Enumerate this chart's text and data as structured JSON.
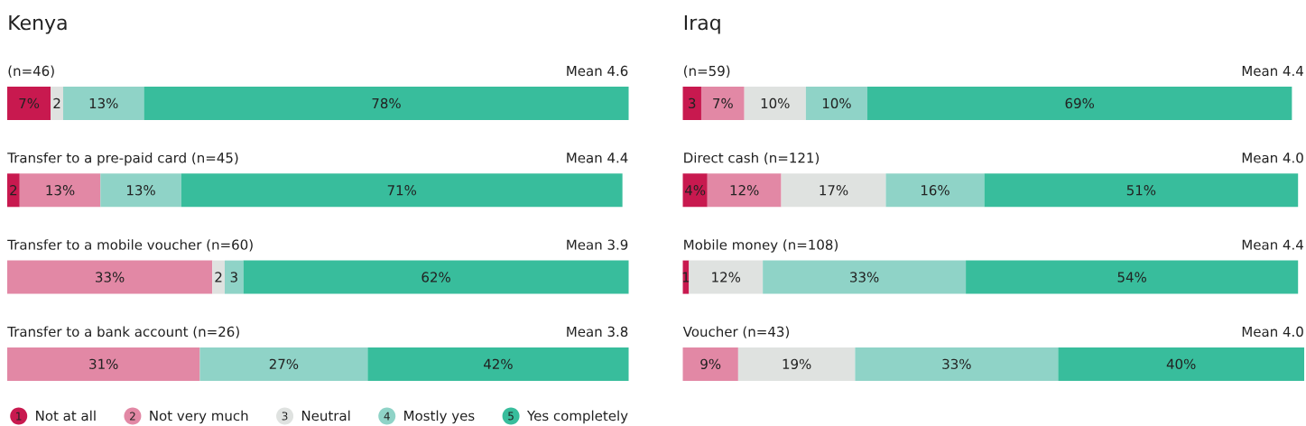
{
  "chart_data": [
    {
      "type": "bar",
      "orientation": "horizontal",
      "stacked": true,
      "title": "Kenya",
      "tick_labels": "y",
      "legend": "bottom",
      "categories": [
        "(n=46)",
        "Transfer to a pre-paid card (n=45)",
        "Transfer to a mobile voucher (n=60)",
        "Transfer to a bank account (n=26)"
      ],
      "y2_categories": [
        "Mean 4.6",
        "Mean 4.4",
        "Mean 3.9",
        "Mean 3.8"
      ],
      "series": [
        {
          "name": "Not at all",
          "color": "#c8194f",
          "values": [
            7,
            2,
            null,
            null
          ],
          "value_labels": [
            "7%",
            "2",
            null,
            null
          ]
        },
        {
          "name": "Not very much",
          "color": "#e288a5",
          "values": [
            null,
            13,
            33,
            31
          ],
          "value_labels": [
            null,
            "13%",
            "33%",
            "31%"
          ]
        },
        {
          "name": "Neutral",
          "color": "#dfe2e0",
          "values": [
            2,
            null,
            2,
            null
          ],
          "value_labels": [
            "2",
            null,
            "2",
            null
          ]
        },
        {
          "name": "Mostly yes",
          "color": "#8fd3c7",
          "values": [
            13,
            13,
            3,
            27
          ],
          "value_labels": [
            "13%",
            "13%",
            "3",
            "27%"
          ]
        },
        {
          "name": "Yes completely",
          "color": "#38bd9c",
          "values": [
            78,
            71,
            62,
            42
          ],
          "value_labels": [
            "78%",
            "71%",
            "62%",
            "42%"
          ]
        }
      ],
      "annotations": [
        "1",
        "2",
        "3",
        "4",
        "5"
      ]
    },
    {
      "type": "bar",
      "orientation": "horizontal",
      "stacked": true,
      "title": "Iraq",
      "tick_labels": "y",
      "categories": [
        "(n=59)",
        "Direct cash (n=121)",
        "Mobile money (n=108)",
        "Voucher (n=43)"
      ],
      "y2_categories": [
        "Mean 4.4",
        "Mean 4.0",
        "Mean 4.4",
        "Mean 4.0"
      ],
      "series": [
        {
          "color": "#c8194f",
          "values": [
            3,
            4,
            1,
            null
          ],
          "value_labels": [
            "3",
            "4%",
            "1",
            null
          ]
        },
        {
          "color": "#e288a5",
          "values": [
            7,
            12,
            null,
            9
          ],
          "value_labels": [
            "7%",
            "12%",
            null,
            "9%"
          ]
        },
        {
          "color": "#dfe2e0",
          "values": [
            10,
            17,
            12,
            19
          ],
          "value_labels": [
            "10%",
            "17%",
            "12%",
            "19%"
          ]
        },
        {
          "color": "#8fd3c7",
          "values": [
            10,
            16,
            33,
            33
          ],
          "value_labels": [
            "10%",
            "16%",
            "33%",
            "33%"
          ]
        },
        {
          "color": "#38bd9c",
          "values": [
            69,
            51,
            54,
            40
          ],
          "value_labels": [
            "69%",
            "51%",
            "54%",
            "40%"
          ]
        }
      ]
    }
  ]
}
